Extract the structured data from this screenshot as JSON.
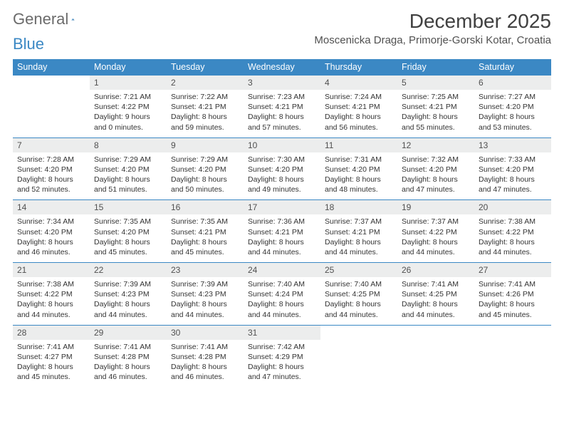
{
  "logo": {
    "text1": "General",
    "text2": "Blue"
  },
  "title": "December 2025",
  "location": "Moscenicka Draga, Primorje-Gorski Kotar, Croatia",
  "colors": {
    "header_bg": "#3b88c4",
    "header_text": "#ffffff",
    "daynum_bg": "#eceded",
    "row_border": "#3b88c4",
    "page_bg": "#ffffff",
    "body_text": "#333333",
    "title_text": "#404040"
  },
  "days_of_week": [
    "Sunday",
    "Monday",
    "Tuesday",
    "Wednesday",
    "Thursday",
    "Friday",
    "Saturday"
  ],
  "weeks": [
    [
      {
        "n": "",
        "sr": "",
        "ss": "",
        "dl": ""
      },
      {
        "n": "1",
        "sr": "Sunrise: 7:21 AM",
        "ss": "Sunset: 4:22 PM",
        "dl": "Daylight: 9 hours and 0 minutes."
      },
      {
        "n": "2",
        "sr": "Sunrise: 7:22 AM",
        "ss": "Sunset: 4:21 PM",
        "dl": "Daylight: 8 hours and 59 minutes."
      },
      {
        "n": "3",
        "sr": "Sunrise: 7:23 AM",
        "ss": "Sunset: 4:21 PM",
        "dl": "Daylight: 8 hours and 57 minutes."
      },
      {
        "n": "4",
        "sr": "Sunrise: 7:24 AM",
        "ss": "Sunset: 4:21 PM",
        "dl": "Daylight: 8 hours and 56 minutes."
      },
      {
        "n": "5",
        "sr": "Sunrise: 7:25 AM",
        "ss": "Sunset: 4:21 PM",
        "dl": "Daylight: 8 hours and 55 minutes."
      },
      {
        "n": "6",
        "sr": "Sunrise: 7:27 AM",
        "ss": "Sunset: 4:20 PM",
        "dl": "Daylight: 8 hours and 53 minutes."
      }
    ],
    [
      {
        "n": "7",
        "sr": "Sunrise: 7:28 AM",
        "ss": "Sunset: 4:20 PM",
        "dl": "Daylight: 8 hours and 52 minutes."
      },
      {
        "n": "8",
        "sr": "Sunrise: 7:29 AM",
        "ss": "Sunset: 4:20 PM",
        "dl": "Daylight: 8 hours and 51 minutes."
      },
      {
        "n": "9",
        "sr": "Sunrise: 7:29 AM",
        "ss": "Sunset: 4:20 PM",
        "dl": "Daylight: 8 hours and 50 minutes."
      },
      {
        "n": "10",
        "sr": "Sunrise: 7:30 AM",
        "ss": "Sunset: 4:20 PM",
        "dl": "Daylight: 8 hours and 49 minutes."
      },
      {
        "n": "11",
        "sr": "Sunrise: 7:31 AM",
        "ss": "Sunset: 4:20 PM",
        "dl": "Daylight: 8 hours and 48 minutes."
      },
      {
        "n": "12",
        "sr": "Sunrise: 7:32 AM",
        "ss": "Sunset: 4:20 PM",
        "dl": "Daylight: 8 hours and 47 minutes."
      },
      {
        "n": "13",
        "sr": "Sunrise: 7:33 AM",
        "ss": "Sunset: 4:20 PM",
        "dl": "Daylight: 8 hours and 47 minutes."
      }
    ],
    [
      {
        "n": "14",
        "sr": "Sunrise: 7:34 AM",
        "ss": "Sunset: 4:20 PM",
        "dl": "Daylight: 8 hours and 46 minutes."
      },
      {
        "n": "15",
        "sr": "Sunrise: 7:35 AM",
        "ss": "Sunset: 4:20 PM",
        "dl": "Daylight: 8 hours and 45 minutes."
      },
      {
        "n": "16",
        "sr": "Sunrise: 7:35 AM",
        "ss": "Sunset: 4:21 PM",
        "dl": "Daylight: 8 hours and 45 minutes."
      },
      {
        "n": "17",
        "sr": "Sunrise: 7:36 AM",
        "ss": "Sunset: 4:21 PM",
        "dl": "Daylight: 8 hours and 44 minutes."
      },
      {
        "n": "18",
        "sr": "Sunrise: 7:37 AM",
        "ss": "Sunset: 4:21 PM",
        "dl": "Daylight: 8 hours and 44 minutes."
      },
      {
        "n": "19",
        "sr": "Sunrise: 7:37 AM",
        "ss": "Sunset: 4:22 PM",
        "dl": "Daylight: 8 hours and 44 minutes."
      },
      {
        "n": "20",
        "sr": "Sunrise: 7:38 AM",
        "ss": "Sunset: 4:22 PM",
        "dl": "Daylight: 8 hours and 44 minutes."
      }
    ],
    [
      {
        "n": "21",
        "sr": "Sunrise: 7:38 AM",
        "ss": "Sunset: 4:22 PM",
        "dl": "Daylight: 8 hours and 44 minutes."
      },
      {
        "n": "22",
        "sr": "Sunrise: 7:39 AM",
        "ss": "Sunset: 4:23 PM",
        "dl": "Daylight: 8 hours and 44 minutes."
      },
      {
        "n": "23",
        "sr": "Sunrise: 7:39 AM",
        "ss": "Sunset: 4:23 PM",
        "dl": "Daylight: 8 hours and 44 minutes."
      },
      {
        "n": "24",
        "sr": "Sunrise: 7:40 AM",
        "ss": "Sunset: 4:24 PM",
        "dl": "Daylight: 8 hours and 44 minutes."
      },
      {
        "n": "25",
        "sr": "Sunrise: 7:40 AM",
        "ss": "Sunset: 4:25 PM",
        "dl": "Daylight: 8 hours and 44 minutes."
      },
      {
        "n": "26",
        "sr": "Sunrise: 7:41 AM",
        "ss": "Sunset: 4:25 PM",
        "dl": "Daylight: 8 hours and 44 minutes."
      },
      {
        "n": "27",
        "sr": "Sunrise: 7:41 AM",
        "ss": "Sunset: 4:26 PM",
        "dl": "Daylight: 8 hours and 45 minutes."
      }
    ],
    [
      {
        "n": "28",
        "sr": "Sunrise: 7:41 AM",
        "ss": "Sunset: 4:27 PM",
        "dl": "Daylight: 8 hours and 45 minutes."
      },
      {
        "n": "29",
        "sr": "Sunrise: 7:41 AM",
        "ss": "Sunset: 4:28 PM",
        "dl": "Daylight: 8 hours and 46 minutes."
      },
      {
        "n": "30",
        "sr": "Sunrise: 7:41 AM",
        "ss": "Sunset: 4:28 PM",
        "dl": "Daylight: 8 hours and 46 minutes."
      },
      {
        "n": "31",
        "sr": "Sunrise: 7:42 AM",
        "ss": "Sunset: 4:29 PM",
        "dl": "Daylight: 8 hours and 47 minutes."
      },
      {
        "n": "",
        "sr": "",
        "ss": "",
        "dl": ""
      },
      {
        "n": "",
        "sr": "",
        "ss": "",
        "dl": ""
      },
      {
        "n": "",
        "sr": "",
        "ss": "",
        "dl": ""
      }
    ]
  ]
}
